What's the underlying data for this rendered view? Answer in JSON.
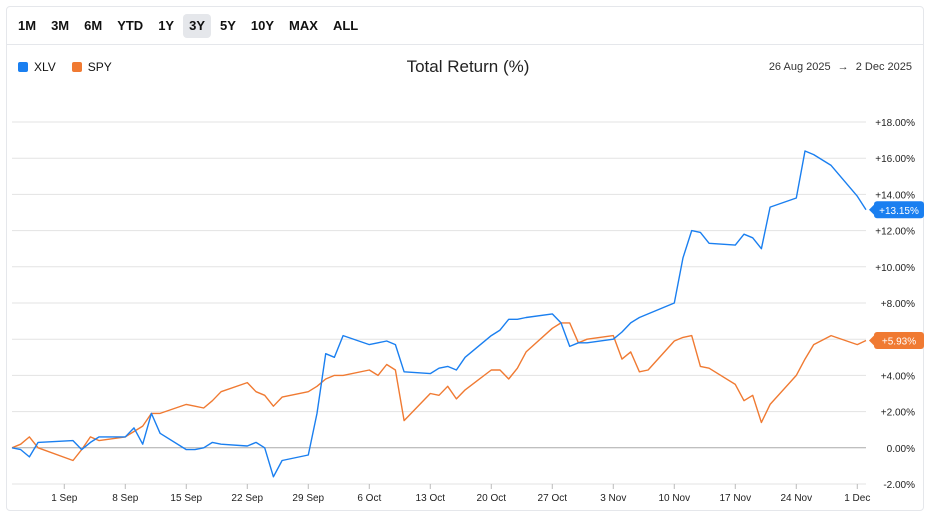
{
  "ranges": [
    "1M",
    "3M",
    "6M",
    "YTD",
    "1Y",
    "3Y",
    "5Y",
    "10Y",
    "MAX",
    "ALL"
  ],
  "active_range": "3Y",
  "header": {
    "title": "Total Return (%)",
    "date_start": "26 Aug 2025",
    "arrow": "→",
    "date_end": "2 Dec 2025"
  },
  "colors": {
    "XLV": "#1a7ff0",
    "SPY": "#f07a32",
    "grid": "#e3e3e3",
    "zero": "#aaaaaa"
  },
  "chart_data": {
    "type": "line",
    "title": "Total Return (%)",
    "ylim": [
      -2,
      18
    ],
    "y_ticks": [
      -2,
      0,
      2,
      4,
      6,
      8,
      10,
      12,
      14,
      16,
      18
    ],
    "y_tick_labels": [
      "-2.00%",
      "0.00%",
      "+2.00%",
      "+4.00%",
      "+6.00%",
      "+8.00%",
      "+10.00%",
      "+12.00%",
      "+14.00%",
      "+16.00%",
      "+18.00%"
    ],
    "x_ticks": [
      {
        "date": "2025-09-01",
        "label": "1 Sep"
      },
      {
        "date": "2025-09-08",
        "label": "8 Sep"
      },
      {
        "date": "2025-09-15",
        "label": "15 Sep"
      },
      {
        "date": "2025-09-22",
        "label": "22 Sep"
      },
      {
        "date": "2025-09-29",
        "label": "29 Sep"
      },
      {
        "date": "2025-10-06",
        "label": "6 Oct"
      },
      {
        "date": "2025-10-13",
        "label": "13 Oct"
      },
      {
        "date": "2025-10-20",
        "label": "20 Oct"
      },
      {
        "date": "2025-10-27",
        "label": "27 Oct"
      },
      {
        "date": "2025-11-03",
        "label": "3 Nov"
      },
      {
        "date": "2025-11-10",
        "label": "10 Nov"
      },
      {
        "date": "2025-11-17",
        "label": "17 Nov"
      },
      {
        "date": "2025-11-24",
        "label": "24 Nov"
      },
      {
        "date": "2025-12-01",
        "label": "1 Dec"
      }
    ],
    "x_range": [
      "2025-08-26",
      "2025-12-02"
    ],
    "grid": true,
    "legend": "top-left",
    "series": [
      {
        "name": "XLV",
        "end_label": "+13.15%",
        "points": [
          [
            "2025-08-26",
            0.0
          ],
          [
            "2025-08-27",
            -0.1
          ],
          [
            "2025-08-28",
            -0.5
          ],
          [
            "2025-08-29",
            0.3
          ],
          [
            "2025-09-02",
            0.4
          ],
          [
            "2025-09-03",
            -0.1
          ],
          [
            "2025-09-04",
            0.3
          ],
          [
            "2025-09-05",
            0.6
          ],
          [
            "2025-09-08",
            0.6
          ],
          [
            "2025-09-09",
            1.1
          ],
          [
            "2025-09-10",
            0.2
          ],
          [
            "2025-09-11",
            1.9
          ],
          [
            "2025-09-12",
            0.8
          ],
          [
            "2025-09-15",
            -0.1
          ],
          [
            "2025-09-16",
            -0.1
          ],
          [
            "2025-09-17",
            0.0
          ],
          [
            "2025-09-18",
            0.3
          ],
          [
            "2025-09-19",
            0.2
          ],
          [
            "2025-09-22",
            0.1
          ],
          [
            "2025-09-23",
            0.3
          ],
          [
            "2025-09-24",
            0.0
          ],
          [
            "2025-09-25",
            -1.6
          ],
          [
            "2025-09-26",
            -0.7
          ],
          [
            "2025-09-29",
            -0.4
          ],
          [
            "2025-09-30",
            1.9
          ],
          [
            "2025-10-01",
            5.2
          ],
          [
            "2025-10-02",
            5.0
          ],
          [
            "2025-10-03",
            6.2
          ],
          [
            "2025-10-06",
            5.7
          ],
          [
            "2025-10-07",
            5.8
          ],
          [
            "2025-10-08",
            5.9
          ],
          [
            "2025-10-09",
            5.7
          ],
          [
            "2025-10-10",
            4.2
          ],
          [
            "2025-10-13",
            4.1
          ],
          [
            "2025-10-14",
            4.4
          ],
          [
            "2025-10-15",
            4.5
          ],
          [
            "2025-10-16",
            4.3
          ],
          [
            "2025-10-17",
            5.0
          ],
          [
            "2025-10-20",
            6.2
          ],
          [
            "2025-10-21",
            6.5
          ],
          [
            "2025-10-22",
            7.1
          ],
          [
            "2025-10-23",
            7.1
          ],
          [
            "2025-10-24",
            7.2
          ],
          [
            "2025-10-27",
            7.4
          ],
          [
            "2025-10-28",
            6.9
          ],
          [
            "2025-10-29",
            5.6
          ],
          [
            "2025-10-30",
            5.8
          ],
          [
            "2025-10-31",
            5.8
          ],
          [
            "2025-11-03",
            6.0
          ],
          [
            "2025-11-04",
            6.4
          ],
          [
            "2025-11-05",
            6.9
          ],
          [
            "2025-11-06",
            7.2
          ],
          [
            "2025-11-07",
            7.4
          ],
          [
            "2025-11-10",
            8.0
          ],
          [
            "2025-11-11",
            10.5
          ],
          [
            "2025-11-12",
            12.0
          ],
          [
            "2025-11-13",
            11.9
          ],
          [
            "2025-11-14",
            11.3
          ],
          [
            "2025-11-17",
            11.2
          ],
          [
            "2025-11-18",
            11.8
          ],
          [
            "2025-11-19",
            11.6
          ],
          [
            "2025-11-20",
            11.0
          ],
          [
            "2025-11-21",
            13.3
          ],
          [
            "2025-11-24",
            13.8
          ],
          [
            "2025-11-25",
            16.4
          ],
          [
            "2025-11-26",
            16.2
          ],
          [
            "2025-11-28",
            15.6
          ],
          [
            "2025-12-01",
            13.9
          ],
          [
            "2025-12-02",
            13.15
          ]
        ]
      },
      {
        "name": "SPY",
        "end_label": "+5.93%",
        "points": [
          [
            "2025-08-26",
            0.0
          ],
          [
            "2025-08-27",
            0.2
          ],
          [
            "2025-08-28",
            0.6
          ],
          [
            "2025-08-29",
            0.0
          ],
          [
            "2025-09-02",
            -0.7
          ],
          [
            "2025-09-03",
            -0.1
          ],
          [
            "2025-09-04",
            0.6
          ],
          [
            "2025-09-05",
            0.4
          ],
          [
            "2025-09-08",
            0.6
          ],
          [
            "2025-09-09",
            0.9
          ],
          [
            "2025-09-10",
            1.2
          ],
          [
            "2025-09-11",
            1.9
          ],
          [
            "2025-09-12",
            1.9
          ],
          [
            "2025-09-15",
            2.4
          ],
          [
            "2025-09-16",
            2.3
          ],
          [
            "2025-09-17",
            2.2
          ],
          [
            "2025-09-18",
            2.6
          ],
          [
            "2025-09-19",
            3.1
          ],
          [
            "2025-09-22",
            3.6
          ],
          [
            "2025-09-23",
            3.1
          ],
          [
            "2025-09-24",
            2.9
          ],
          [
            "2025-09-25",
            2.3
          ],
          [
            "2025-09-26",
            2.8
          ],
          [
            "2025-09-29",
            3.1
          ],
          [
            "2025-09-30",
            3.4
          ],
          [
            "2025-10-01",
            3.8
          ],
          [
            "2025-10-02",
            4.0
          ],
          [
            "2025-10-03",
            4.0
          ],
          [
            "2025-10-06",
            4.3
          ],
          [
            "2025-10-07",
            4.0
          ],
          [
            "2025-10-08",
            4.6
          ],
          [
            "2025-10-09",
            4.3
          ],
          [
            "2025-10-10",
            1.5
          ],
          [
            "2025-10-13",
            3.0
          ],
          [
            "2025-10-14",
            2.9
          ],
          [
            "2025-10-15",
            3.4
          ],
          [
            "2025-10-16",
            2.7
          ],
          [
            "2025-10-17",
            3.2
          ],
          [
            "2025-10-20",
            4.3
          ],
          [
            "2025-10-21",
            4.3
          ],
          [
            "2025-10-22",
            3.8
          ],
          [
            "2025-10-23",
            4.4
          ],
          [
            "2025-10-24",
            5.3
          ],
          [
            "2025-10-27",
            6.6
          ],
          [
            "2025-10-28",
            6.9
          ],
          [
            "2025-10-29",
            6.9
          ],
          [
            "2025-10-30",
            5.8
          ],
          [
            "2025-10-31",
            6.0
          ],
          [
            "2025-11-03",
            6.2
          ],
          [
            "2025-11-04",
            4.9
          ],
          [
            "2025-11-05",
            5.3
          ],
          [
            "2025-11-06",
            4.2
          ],
          [
            "2025-11-07",
            4.3
          ],
          [
            "2025-11-10",
            5.9
          ],
          [
            "2025-11-11",
            6.1
          ],
          [
            "2025-11-12",
            6.2
          ],
          [
            "2025-11-13",
            4.5
          ],
          [
            "2025-11-14",
            4.4
          ],
          [
            "2025-11-17",
            3.5
          ],
          [
            "2025-11-18",
            2.6
          ],
          [
            "2025-11-19",
            2.9
          ],
          [
            "2025-11-20",
            1.4
          ],
          [
            "2025-11-21",
            2.4
          ],
          [
            "2025-11-24",
            4.0
          ],
          [
            "2025-11-25",
            4.9
          ],
          [
            "2025-11-26",
            5.7
          ],
          [
            "2025-11-28",
            6.2
          ],
          [
            "2025-12-01",
            5.7
          ],
          [
            "2025-12-02",
            5.93
          ]
        ]
      }
    ]
  }
}
